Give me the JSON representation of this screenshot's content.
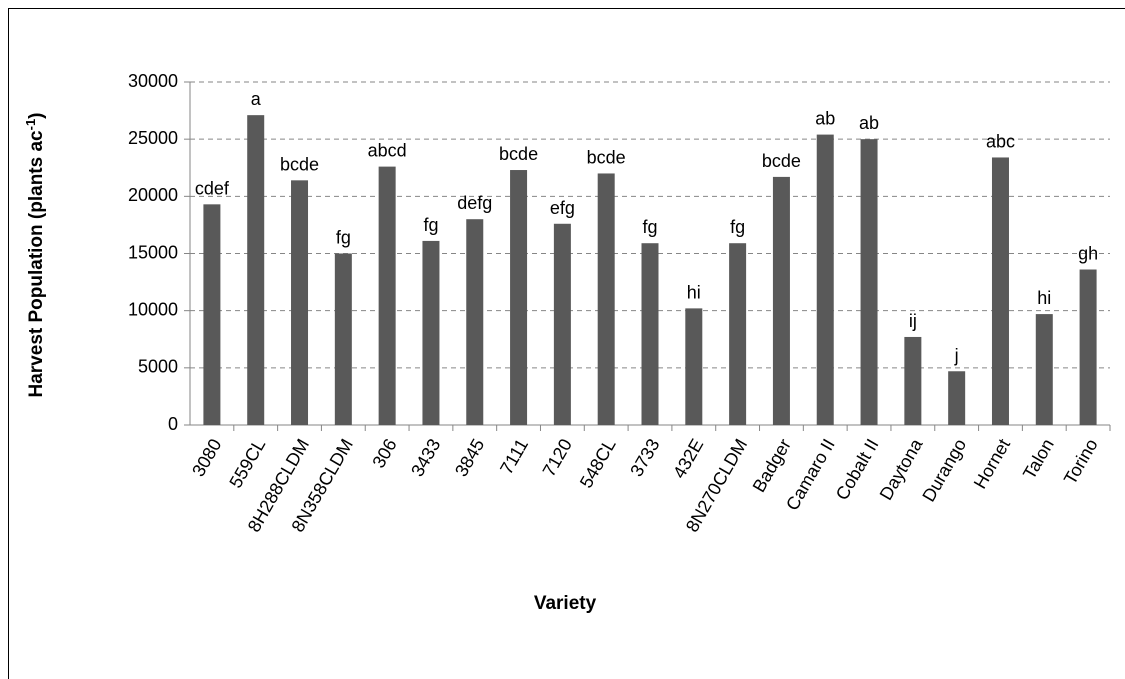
{
  "chart_data": {
    "type": "bar",
    "y_label": {
      "text": "Harvest Population (plants ac",
      "superscript": "-1",
      "suffix": ")"
    },
    "x_label": "Variety",
    "categories": [
      "3080",
      "559CL",
      "8H288CLDM",
      "8N358CLDM",
      "306",
      "3433",
      "3845",
      "7111",
      "7120",
      "548CL",
      "3733",
      "432E",
      "8N270CLDM",
      "Badger",
      "Camaro II",
      "Cobalt II",
      "Daytona",
      "Durango",
      "Hornet",
      "Talon",
      "Torino"
    ],
    "values": [
      19300,
      27100,
      21400,
      15000,
      22600,
      16100,
      18000,
      22300,
      17600,
      22000,
      15900,
      10200,
      15900,
      21700,
      25400,
      25000,
      7700,
      4700,
      23400,
      9700,
      13600
    ],
    "annotations": [
      "cdef",
      "a",
      "bcde",
      "fg",
      "abcd",
      "fg",
      "defg",
      "bcde",
      "efg",
      "bcde",
      "fg",
      "hi",
      "fg",
      "bcde",
      "ab",
      "ab",
      "ij",
      "j",
      "abc",
      "hi",
      "gh"
    ],
    "color": "#595959",
    "ylim": [
      0,
      30000
    ],
    "yticks": [
      0,
      5000,
      10000,
      15000,
      20000,
      25000,
      30000
    ],
    "grid": true
  }
}
